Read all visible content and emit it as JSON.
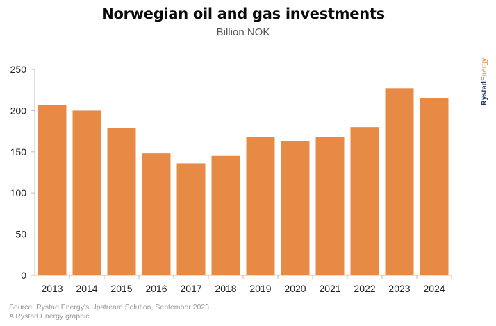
{
  "chart_data": {
    "type": "bar",
    "title": "Norwegian oil and gas investments",
    "subtitle": "Billion NOK",
    "categories": [
      "2013",
      "2014",
      "2015",
      "2016",
      "2017",
      "2018",
      "2019",
      "2020",
      "2021",
      "2022",
      "2023",
      "2024"
    ],
    "values": [
      207,
      200,
      179,
      148,
      136,
      145,
      168,
      163,
      168,
      180,
      227,
      215
    ],
    "ylim": [
      0,
      250
    ],
    "yticks": [
      0,
      50,
      100,
      150,
      200,
      250
    ],
    "grid": false,
    "bar_color": "#e68a45",
    "axis_color": "#bdbdbd"
  },
  "brand": {
    "part1": "Rystad",
    "part2": "Energy"
  },
  "footer": {
    "source": "Source: Rystad Energy's Upstream Solution, September 2023",
    "credit": "A Rystad Energy graphic"
  }
}
